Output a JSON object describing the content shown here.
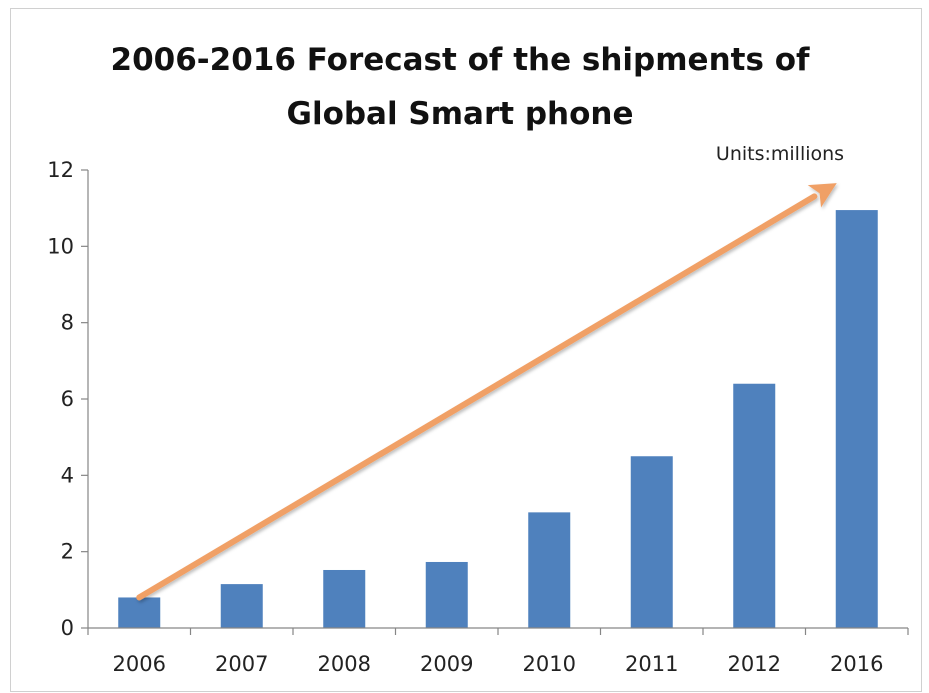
{
  "chart_data": {
    "type": "bar",
    "title": "2006-2016 Forecast of the shipments of Global Smart phone",
    "title_lines": [
      "2006-2016 Forecast of the shipments of",
      "Global Smart phone"
    ],
    "units_label": "Units:millions",
    "xlabel": "",
    "ylabel": "",
    "categories": [
      "2006",
      "2007",
      "2008",
      "2009",
      "2010",
      "2011",
      "2012",
      "2016"
    ],
    "values": [
      0.8,
      1.15,
      1.52,
      1.73,
      3.03,
      4.5,
      6.4,
      10.95
    ],
    "ylim": [
      0,
      12
    ],
    "yticks": [
      0,
      2,
      4,
      6,
      8,
      10,
      12
    ],
    "grid": false,
    "legend": "none",
    "annotations": [
      {
        "type": "trend-arrow",
        "from": {
          "category": "2006",
          "y": 0.8
        },
        "to": {
          "category": "2016",
          "y": 11.5
        },
        "color": "#f0a066"
      }
    ]
  },
  "colors": {
    "bar": "#4f81bd",
    "axis": "#868686",
    "arrow": "#f0a066"
  }
}
